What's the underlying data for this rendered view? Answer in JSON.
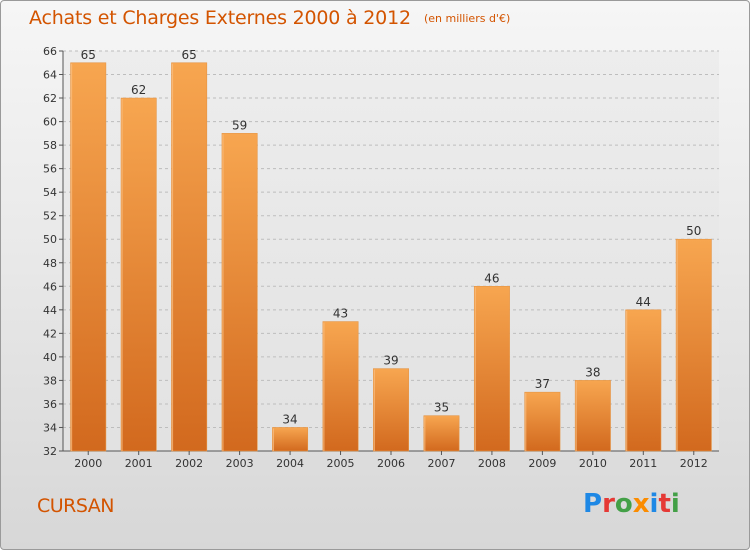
{
  "header": {
    "title": "Achats et Charges Externes 2000 à 2012",
    "unit_note": "(en milliers d'€)"
  },
  "footer": {
    "town": "CURSAN",
    "brand": "Proxiti",
    "brand_letters": [
      {
        "ch": "P",
        "color": "#1e88e5"
      },
      {
        "ch": "r",
        "color": "#e53935"
      },
      {
        "ch": "o",
        "color": "#43a047"
      },
      {
        "ch": "x",
        "color": "#fb8c00"
      },
      {
        "ch": "i",
        "color": "#1e88e5"
      },
      {
        "ch": "t",
        "color": "#e53935"
      },
      {
        "ch": "i",
        "color": "#43a047"
      }
    ]
  },
  "colors": {
    "accent": "#d35400",
    "bar_top": "#f7a650",
    "bar_bottom": "#d2691e",
    "grid": "#bdbdbd"
  },
  "chart_data": {
    "type": "bar",
    "title": "Achats et Charges Externes 2000 à 2012",
    "subtitle": "(en milliers d'€)",
    "xlabel": "",
    "ylabel": "",
    "categories": [
      "2000",
      "2001",
      "2002",
      "2003",
      "2004",
      "2005",
      "2006",
      "2007",
      "2008",
      "2009",
      "2010",
      "2011",
      "2012"
    ],
    "values": [
      65,
      62,
      65,
      59,
      34,
      43,
      39,
      35,
      46,
      37,
      38,
      44,
      50
    ],
    "ylim": [
      32,
      66
    ],
    "ytick_step": 2,
    "grid": true,
    "grid_style": "dashed",
    "data_labels": true
  }
}
